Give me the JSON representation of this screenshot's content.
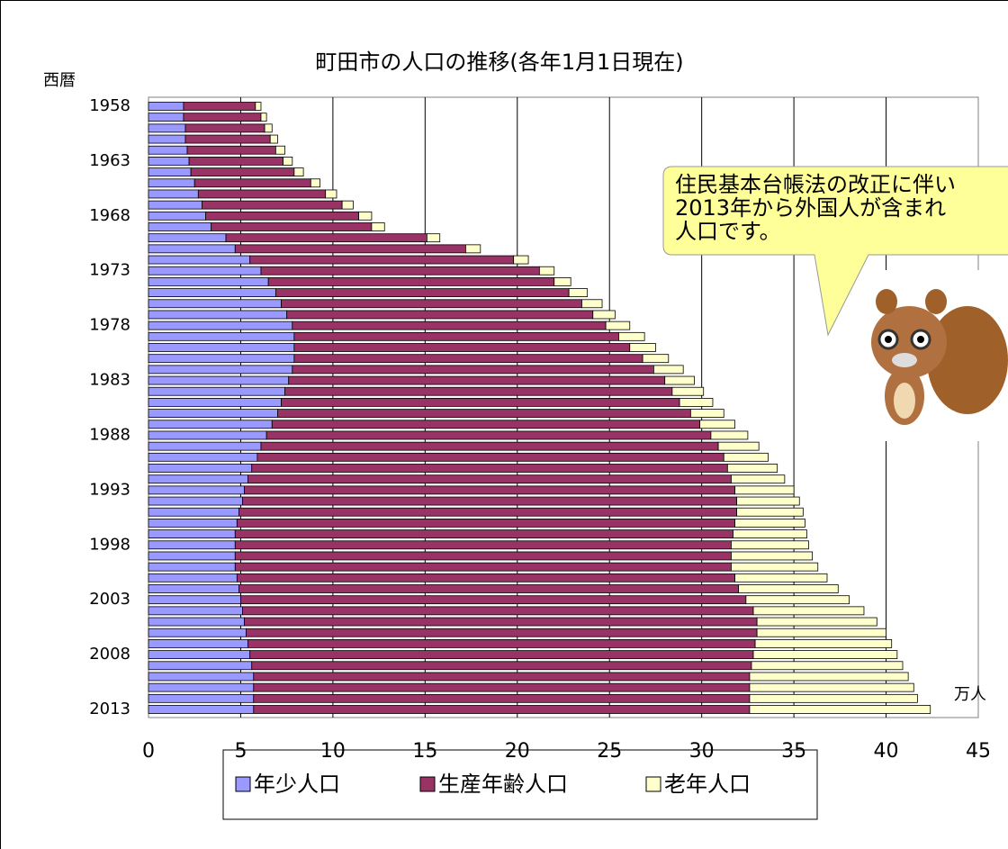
{
  "chart_data": {
    "type": "stacked-bar-horizontal",
    "title": "町田市の人口の推移(各年1月1日現在)",
    "y_label": "西暦",
    "x_unit": "万人",
    "annotation": [
      "住民基本台帳法の改正に伴い",
      "2013年から外国人が含まれ",
      "人口です。"
    ],
    "categories": [
      "1958",
      null,
      null,
      null,
      null,
      "1963",
      null,
      null,
      null,
      null,
      "1968",
      null,
      null,
      null,
      null,
      "1973",
      null,
      null,
      null,
      null,
      "1978",
      null,
      null,
      null,
      null,
      "1983",
      null,
      null,
      null,
      null,
      "1988",
      null,
      null,
      null,
      null,
      "1993",
      null,
      null,
      null,
      null,
      "1998",
      null,
      null,
      null,
      null,
      "2003",
      null,
      null,
      null,
      null,
      "2008",
      null,
      null,
      null,
      null,
      "2013"
    ],
    "series": [
      {
        "name": "年少人口",
        "color": "#9999ff",
        "values": [
          1.9,
          1.9,
          2.0,
          2.0,
          2.1,
          2.2,
          2.3,
          2.5,
          2.7,
          2.9,
          3.1,
          3.4,
          4.2,
          4.7,
          5.5,
          6.1,
          6.5,
          6.9,
          7.2,
          7.5,
          7.8,
          7.9,
          7.9,
          7.9,
          7.8,
          7.6,
          7.4,
          7.2,
          7.0,
          6.7,
          6.4,
          6.1,
          5.9,
          5.6,
          5.4,
          5.2,
          5.1,
          4.9,
          4.8,
          4.7,
          4.7,
          4.7,
          4.7,
          4.8,
          4.9,
          5.0,
          5.1,
          5.2,
          5.3,
          5.4,
          5.5,
          5.6,
          5.7,
          5.7,
          5.7,
          5.7
        ]
      },
      {
        "name": "生産年齢人口",
        "color": "#993366",
        "values": [
          3.9,
          4.2,
          4.3,
          4.6,
          4.8,
          5.1,
          5.6,
          6.3,
          6.9,
          7.6,
          8.3,
          8.7,
          10.9,
          12.5,
          14.3,
          15.1,
          15.5,
          15.9,
          16.3,
          16.6,
          17.0,
          17.6,
          18.2,
          18.9,
          19.6,
          20.4,
          21.0,
          21.6,
          22.4,
          23.2,
          24.1,
          24.8,
          25.3,
          25.8,
          26.2,
          26.6,
          26.8,
          27.0,
          27.0,
          27.0,
          26.9,
          26.9,
          26.9,
          27.0,
          27.1,
          27.4,
          27.7,
          27.8,
          27.7,
          27.5,
          27.3,
          27.1,
          26.9,
          26.9,
          26.9,
          26.9
        ]
      },
      {
        "name": "老年人口",
        "color": "#ffffcc",
        "values": [
          0.3,
          0.3,
          0.4,
          0.4,
          0.5,
          0.5,
          0.5,
          0.5,
          0.6,
          0.6,
          0.7,
          0.7,
          0.7,
          0.8,
          0.8,
          0.8,
          0.9,
          1.0,
          1.1,
          1.2,
          1.3,
          1.4,
          1.4,
          1.4,
          1.6,
          1.6,
          1.7,
          1.8,
          1.8,
          1.9,
          2.0,
          2.2,
          2.4,
          2.7,
          2.9,
          3.2,
          3.4,
          3.6,
          3.8,
          4.0,
          4.2,
          4.4,
          4.7,
          5.0,
          5.4,
          5.6,
          6.0,
          6.5,
          7.0,
          7.4,
          7.8,
          8.2,
          8.6,
          8.9,
          9.1,
          9.8
        ]
      }
    ],
    "xlim": [
      0,
      45
    ],
    "xticks": [
      0,
      5,
      10,
      15,
      20,
      25,
      30,
      35,
      40,
      45
    ],
    "grid": true,
    "legend": "bottom"
  }
}
